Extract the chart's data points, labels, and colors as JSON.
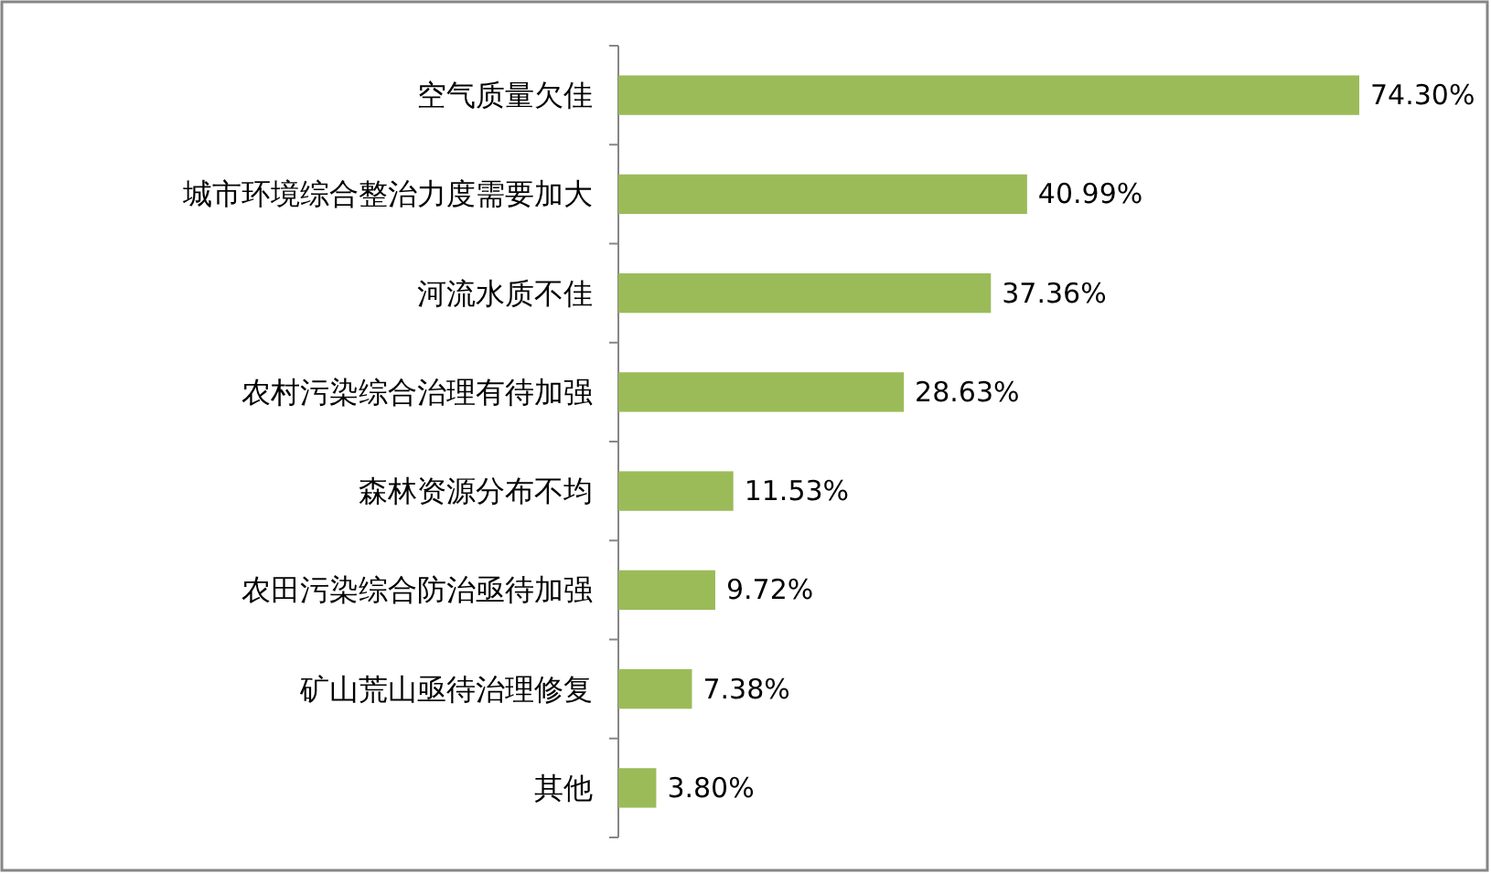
{
  "chart_data": {
    "type": "bar",
    "orientation": "horizontal",
    "categories": [
      "空气质量欠佳",
      "城市环境综合整治力度需要加大",
      "河流水质不佳",
      "农村污染综合治理有待加强",
      "森林资源分布不均",
      "农田污染综合防治亟待加强",
      "矿山荒山亟待治理修复",
      "其他"
    ],
    "values": [
      74.3,
      40.99,
      37.36,
      28.63,
      11.53,
      9.72,
      7.38,
      3.8
    ],
    "value_labels": [
      "74.30%",
      "40.99%",
      "37.36%",
      "28.63%",
      "11.53%",
      "9.72%",
      "7.38%",
      "3.80%"
    ],
    "color": "#9bbb59"
  }
}
